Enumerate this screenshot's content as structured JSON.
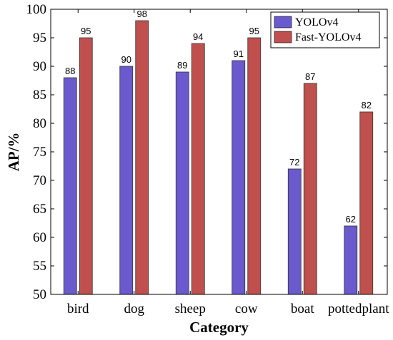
{
  "chart_data": {
    "type": "bar",
    "title": "",
    "xlabel": "Category",
    "ylabel": "AP/%",
    "categories": [
      "bird",
      "dog",
      "sheep",
      "cow",
      "boat",
      "pottedplant"
    ],
    "series": [
      {
        "name": "YOLOv4",
        "values": [
          88,
          90,
          89,
          91,
          72,
          62
        ],
        "color": "#6a5acd"
      },
      {
        "name": "Fast-YOLOv4",
        "values": [
          95,
          98,
          94,
          95,
          87,
          82
        ],
        "color": "#c0504d"
      }
    ],
    "ylim": [
      50,
      100
    ],
    "yticks": [
      50,
      55,
      60,
      65,
      70,
      75,
      80,
      85,
      90,
      95,
      100
    ],
    "grid": false,
    "legend_position": "top-right",
    "data_labels": true
  }
}
